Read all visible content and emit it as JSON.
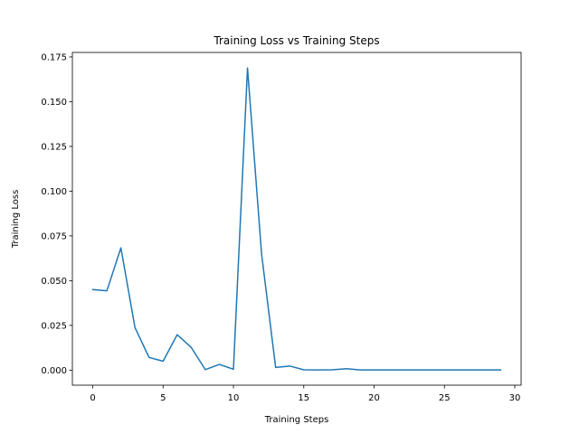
{
  "chart_data": {
    "type": "line",
    "title": "Training Loss vs Training Steps",
    "xlabel": "Training Steps",
    "ylabel": "Training Loss",
    "xlim": [
      -1.45,
      30.45
    ],
    "ylim": [
      -0.0084,
      0.1775
    ],
    "xticks": [
      0,
      5,
      10,
      15,
      20,
      25,
      30
    ],
    "yticks": [
      0.0,
      0.025,
      0.05,
      0.075,
      0.1,
      0.125,
      0.15,
      0.175
    ],
    "ytick_labels": [
      "0.000",
      "0.025",
      "0.050",
      "0.075",
      "0.100",
      "0.125",
      "0.150",
      "0.175"
    ],
    "grid": false,
    "series": [
      {
        "color": "#1f77b4",
        "x": [
          0,
          1,
          2,
          3,
          4,
          5,
          6,
          7,
          8,
          9,
          10,
          11,
          12,
          13,
          14,
          15,
          16,
          17,
          18,
          19,
          20,
          21,
          22,
          23,
          24,
          25,
          26,
          27,
          28,
          29
        ],
        "y": [
          0.045,
          0.0443,
          0.0683,
          0.0238,
          0.0071,
          0.005,
          0.0198,
          0.0127,
          0.0003,
          0.0032,
          0.0005,
          0.1688,
          0.065,
          0.0015,
          0.0023,
          0.0002,
          0.0001,
          0.0002,
          0.0008,
          0.0001,
          0.0001,
          0.0001,
          0.0001,
          0.0001,
          0.0001,
          0.0001,
          0.0001,
          0.0001,
          0.0001,
          0.0001
        ]
      }
    ]
  }
}
